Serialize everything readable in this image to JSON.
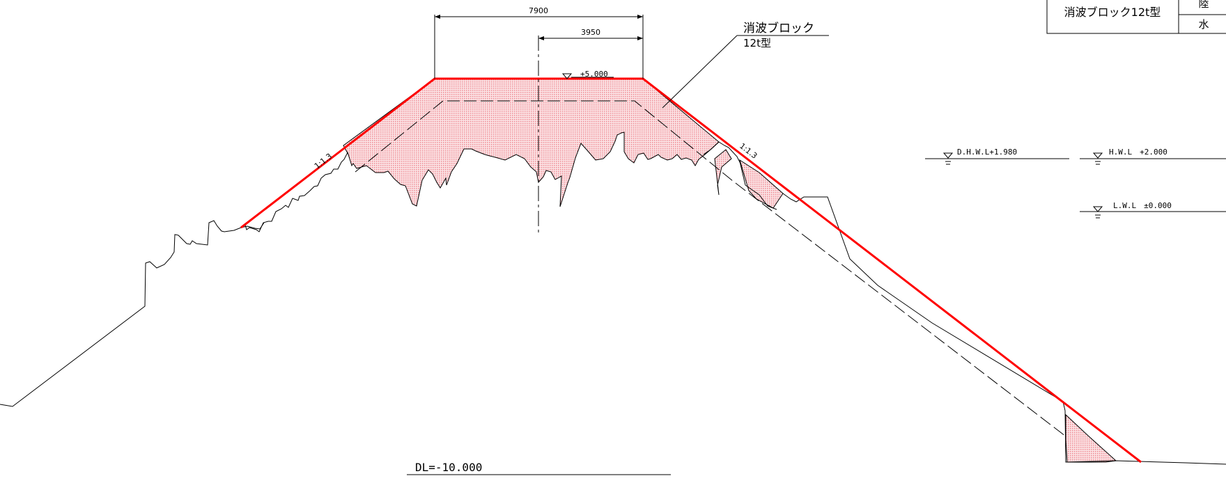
{
  "dimensions": {
    "top_width": "7900",
    "half_width": "3950"
  },
  "crown": {
    "elevation": "+5.000"
  },
  "block_label": {
    "line1": "消波ブロック",
    "line2": "12t型"
  },
  "slopes": {
    "left": "1:1.3",
    "right": "1:1.3"
  },
  "water_levels": {
    "dhwl": "D.H.W.L+1.980",
    "hwl": "H.W.L　+2.000",
    "lwl": "L.W.L　±0.000"
  },
  "datum": {
    "label": "DL=-10.000"
  },
  "legend_table": {
    "row_label": "消波ブロック12t型",
    "cell_top": "陸",
    "cell_bottom": "水"
  },
  "colors": {
    "profile_line": "#ff0000",
    "fill": "#f7b8bc"
  }
}
